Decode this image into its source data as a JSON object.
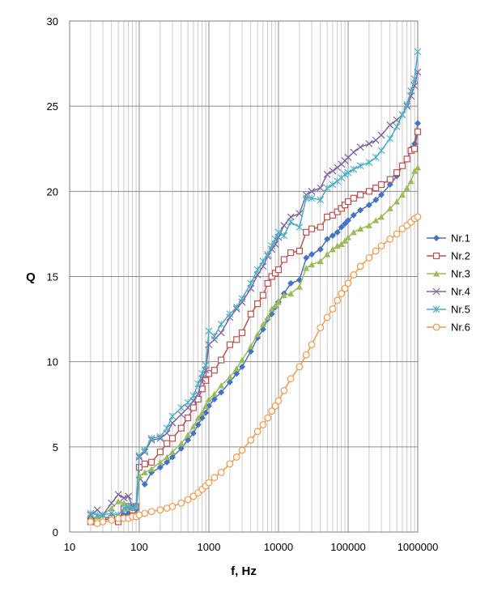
{
  "chart_data": {
    "type": "line",
    "xlabel": "f, Hz",
    "ylabel": "Q",
    "x_scale": "log",
    "xlim": [
      10,
      1000000
    ],
    "ylim": [
      0,
      30
    ],
    "x_ticks": [
      10,
      100,
      1000,
      10000,
      100000,
      1000000
    ],
    "y_ticks": [
      0,
      5,
      10,
      15,
      20,
      25,
      30
    ],
    "x_tick_labels": [
      "10",
      "100",
      "1000",
      "10000",
      "100000",
      "1000000"
    ],
    "y_tick_labels": [
      "0",
      "5",
      "10",
      "15",
      "20",
      "25",
      "30"
    ],
    "grid": true,
    "legend_position": "right",
    "x": [
      20,
      25,
      30,
      40,
      50,
      60,
      70,
      80,
      90,
      100,
      120,
      150,
      200,
      250,
      300,
      400,
      500,
      600,
      700,
      800,
      900,
      1000,
      1200,
      1500,
      2000,
      2500,
      3000,
      4000,
      5000,
      6000,
      7000,
      8000,
      9000,
      10000,
      12000,
      15000,
      20000,
      25000,
      30000,
      40000,
      50000,
      60000,
      70000,
      80000,
      90000,
      100000,
      120000,
      150000,
      200000,
      250000,
      300000,
      400000,
      500000,
      600000,
      700000,
      800000,
      900000,
      1000000
    ],
    "series": [
      {
        "name": "Nr.1",
        "color": "#4472c4",
        "marker": "diamond",
        "values": [
          0.8,
          0.8,
          0.8,
          0.9,
          0.9,
          1.0,
          1.1,
          1.2,
          1.3,
          3.2,
          2.8,
          3.5,
          3.8,
          4.1,
          4.4,
          4.9,
          5.4,
          5.8,
          6.3,
          6.7,
          7.0,
          7.4,
          7.8,
          8.2,
          8.8,
          9.3,
          9.7,
          10.6,
          11.4,
          11.9,
          12.5,
          12.8,
          13.2,
          13.5,
          14.0,
          14.6,
          14.8,
          16.1,
          16.3,
          16.6,
          17.2,
          17.4,
          17.6,
          17.9,
          18.1,
          18.3,
          18.6,
          18.9,
          19.2,
          19.5,
          19.8,
          20.4,
          20.9,
          21.5,
          21.9,
          22.5,
          22.8,
          24.0
        ]
      },
      {
        "name": "Nr.2",
        "color": "#c0504d",
        "marker": "square",
        "values": [
          0.6,
          0.6,
          0.7,
          0.8,
          0.6,
          1.4,
          1.5,
          1.3,
          1.5,
          3.8,
          4.0,
          4.1,
          4.7,
          5.2,
          5.5,
          6.1,
          6.7,
          7.3,
          7.8,
          8.4,
          8.9,
          9.3,
          9.5,
          10.1,
          11.0,
          11.3,
          11.7,
          12.8,
          13.4,
          13.9,
          14.6,
          15.0,
          15.2,
          15.4,
          16.0,
          16.4,
          16.5,
          17.6,
          17.8,
          17.9,
          18.5,
          18.6,
          18.8,
          19.0,
          19.2,
          19.4,
          19.6,
          19.8,
          20.0,
          20.2,
          20.4,
          20.7,
          21.1,
          21.5,
          21.9,
          22.4,
          22.5,
          23.5
        ]
      },
      {
        "name": "Nr.3",
        "color": "#9bbb59",
        "marker": "triangle",
        "values": [
          0.8,
          0.9,
          1.0,
          1.4,
          1.8,
          1.7,
          1.4,
          1.4,
          1.6,
          3.3,
          3.5,
          3.7,
          4.1,
          4.4,
          4.7,
          5.2,
          5.7,
          6.2,
          6.7,
          7.0,
          7.4,
          7.8,
          8.1,
          8.6,
          9.1,
          9.6,
          10.1,
          10.9,
          11.6,
          12.2,
          12.6,
          13.1,
          13.3,
          13.5,
          13.9,
          14.0,
          14.4,
          15.5,
          15.7,
          15.9,
          16.3,
          16.6,
          16.8,
          16.9,
          17.1,
          17.3,
          17.6,
          17.8,
          18.0,
          18.3,
          18.5,
          19.0,
          19.4,
          19.8,
          20.2,
          20.6,
          21.2,
          21.4
        ]
      },
      {
        "name": "Nr.4",
        "color": "#8064a2",
        "marker": "x",
        "values": [
          1.0,
          1.3,
          1.0,
          1.7,
          2.2,
          2.0,
          2.1,
          1.5,
          1.5,
          4.4,
          4.7,
          5.4,
          5.5,
          5.8,
          6.4,
          6.9,
          7.3,
          7.7,
          8.1,
          9.0,
          9.5,
          11.0,
          11.3,
          11.7,
          12.6,
          13.1,
          13.5,
          14.3,
          15.1,
          15.6,
          16.2,
          16.6,
          16.9,
          17.3,
          18.0,
          18.5,
          18.7,
          19.8,
          20.0,
          20.2,
          21.0,
          21.2,
          21.4,
          21.6,
          21.8,
          22.0,
          22.3,
          22.6,
          22.8,
          23.0,
          23.3,
          23.9,
          24.2,
          24.5,
          25.0,
          25.6,
          26.2,
          27.0
        ]
      },
      {
        "name": "Nr.5",
        "color": "#4bacc6",
        "marker": "asterisk",
        "values": [
          1.1,
          1.0,
          1.0,
          1.1,
          1.0,
          1.4,
          1.5,
          1.4,
          1.5,
          4.5,
          4.8,
          5.5,
          5.6,
          6.1,
          6.8,
          7.3,
          7.6,
          8.0,
          8.7,
          9.3,
          9.8,
          11.8,
          11.5,
          12.2,
          12.8,
          13.2,
          13.7,
          14.6,
          15.4,
          15.9,
          16.3,
          16.8,
          17.2,
          17.6,
          17.4,
          18.2,
          17.9,
          19.6,
          19.6,
          19.5,
          20.2,
          20.4,
          20.6,
          20.8,
          21.0,
          21.1,
          21.3,
          21.5,
          21.7,
          22.0,
          22.4,
          23.1,
          23.8,
          24.5,
          25.1,
          25.9,
          26.6,
          28.2
        ]
      },
      {
        "name": "Nr.6",
        "color": "#f79646",
        "marker": "circle",
        "values": [
          0.6,
          0.5,
          0.6,
          0.7,
          0.8,
          0.8,
          0.8,
          0.9,
          0.9,
          1.0,
          1.1,
          1.2,
          1.3,
          1.4,
          1.5,
          1.7,
          1.9,
          2.1,
          2.3,
          2.5,
          2.7,
          2.9,
          3.2,
          3.5,
          4.0,
          4.4,
          4.8,
          5.4,
          5.9,
          6.3,
          6.7,
          7.1,
          7.4,
          7.7,
          8.3,
          9.0,
          9.7,
          10.4,
          11.0,
          12.0,
          12.6,
          13.1,
          13.6,
          14.0,
          14.3,
          14.6,
          15.1,
          15.6,
          16.1,
          16.5,
          16.8,
          17.2,
          17.5,
          17.8,
          18.0,
          18.2,
          18.4,
          18.5
        ]
      }
    ]
  }
}
